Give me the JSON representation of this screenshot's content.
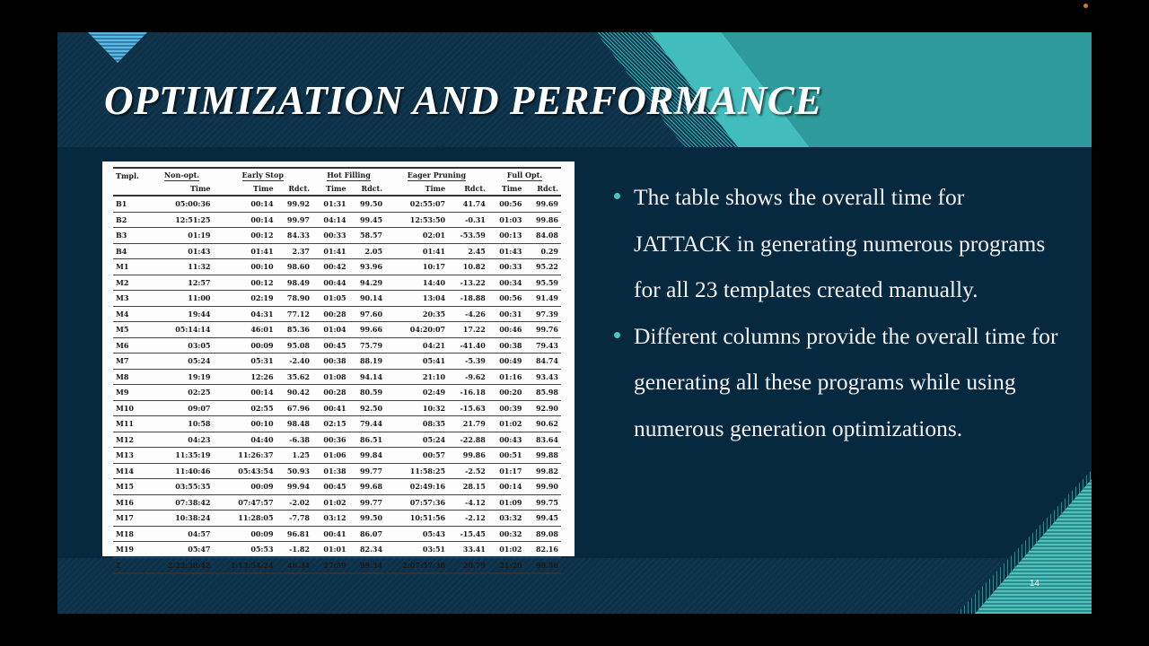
{
  "slide": {
    "title": "OPTIMIZATION AND PERFORMANCE",
    "page_number": "14",
    "colors": {
      "background": "#0b2d44",
      "panel": "#06293f",
      "accent_teal": "#2e9a9c",
      "accent_light_teal": "#42bcbc",
      "bullet": "#4ec3c0"
    }
  },
  "table": {
    "group_headers": [
      "Tmpl.",
      "Non-opt.",
      "Early Stop",
      "Hot Filling",
      "Eager Pruning",
      "Full Opt."
    ],
    "sub_headers": [
      "",
      "Time",
      "Time",
      "Rdct.",
      "Time",
      "Rdct.",
      "Time",
      "Rdct.",
      "Time",
      "Rdct."
    ],
    "rows": [
      [
        "B1",
        "05:00:36",
        "00:14",
        "99.92",
        "01:31",
        "99.50",
        "02:55:07",
        "41.74",
        "00:56",
        "99.69"
      ],
      [
        "B2",
        "12:51:25",
        "00:14",
        "99.97",
        "04:14",
        "99.45",
        "12:53:50",
        "-0.31",
        "01:03",
        "99.86"
      ],
      [
        "B3",
        "01:19",
        "00:12",
        "84.33",
        "00:33",
        "58.57",
        "02:01",
        "-53.59",
        "00:13",
        "84.08"
      ],
      [
        "B4",
        "01:43",
        "01:41",
        "2.37",
        "01:41",
        "2.05",
        "01:41",
        "2.45",
        "01:43",
        "0.29"
      ],
      [
        "M1",
        "11:32",
        "00:10",
        "98.60",
        "00:42",
        "93.96",
        "10:17",
        "10.82",
        "00:33",
        "95.22"
      ],
      [
        "M2",
        "12:57",
        "00:12",
        "98.49",
        "00:44",
        "94.29",
        "14:40",
        "-13.22",
        "00:34",
        "95.59"
      ],
      [
        "M3",
        "11:00",
        "02:19",
        "78.90",
        "01:05",
        "90.14",
        "13:04",
        "-18.88",
        "00:56",
        "91.49"
      ],
      [
        "M4",
        "19:44",
        "04:31",
        "77.12",
        "00:28",
        "97.60",
        "20:35",
        "-4.26",
        "00:31",
        "97.39"
      ],
      [
        "M5",
        "05:14:14",
        "46:01",
        "85.36",
        "01:04",
        "99.66",
        "04:20:07",
        "17.22",
        "00:46",
        "99.76"
      ],
      [
        "M6",
        "03:05",
        "00:09",
        "95.08",
        "00:45",
        "75.79",
        "04:21",
        "-41.40",
        "00:38",
        "79.43"
      ],
      [
        "M7",
        "05:24",
        "05:31",
        "-2.40",
        "00:38",
        "88.19",
        "05:41",
        "-5.39",
        "00:49",
        "84.74"
      ],
      [
        "M8",
        "19:19",
        "12:26",
        "35.62",
        "01:08",
        "94.14",
        "21:10",
        "-9.62",
        "01:16",
        "93.43"
      ],
      [
        "M9",
        "02:25",
        "00:14",
        "90.42",
        "00:28",
        "80.59",
        "02:49",
        "-16.18",
        "00:20",
        "85.98"
      ],
      [
        "M10",
        "09:07",
        "02:55",
        "67.96",
        "00:41",
        "92.50",
        "10:32",
        "-15.63",
        "00:39",
        "92.90"
      ],
      [
        "M11",
        "10:58",
        "00:10",
        "98.48",
        "02:15",
        "79.44",
        "08:35",
        "21.79",
        "01:02",
        "90.62"
      ],
      [
        "M12",
        "04:23",
        "04:40",
        "-6.38",
        "00:36",
        "86.51",
        "05:24",
        "-22.88",
        "00:43",
        "83.64"
      ],
      [
        "M13",
        "11:35:19",
        "11:26:37",
        "1.25",
        "01:06",
        "99.84",
        "00:57",
        "99.86",
        "00:51",
        "99.88"
      ],
      [
        "M14",
        "11:40:46",
        "05:43:54",
        "50.93",
        "01:38",
        "99.77",
        "11:58:25",
        "-2.52",
        "01:17",
        "99.82"
      ],
      [
        "M15",
        "03:55:35",
        "00:09",
        "99.94",
        "00:45",
        "99.68",
        "02:49:16",
        "28.15",
        "00:14",
        "99.90"
      ],
      [
        "M16",
        "07:38:42",
        "07:47:57",
        "-2.02",
        "01:02",
        "99.77",
        "07:57:36",
        "-4.12",
        "01:09",
        "99.75"
      ],
      [
        "M17",
        "10:38:24",
        "11:28:05",
        "-7.78",
        "03:12",
        "99.50",
        "10:51:56",
        "-2.12",
        "03:32",
        "99.45"
      ],
      [
        "M18",
        "04:57",
        "00:09",
        "96.81",
        "00:41",
        "86.07",
        "05:43",
        "-15.45",
        "00:32",
        "89.08"
      ],
      [
        "M19",
        "05:47",
        "05:53",
        "-1.82",
        "01:01",
        "82.34",
        "03:51",
        "33.41",
        "01:02",
        "82.16"
      ],
      [
        "Σ",
        "2:22:38:42",
        "1:13:54:24",
        "46.34",
        "27:59",
        "99.34",
        "2:07:57:38",
        "20.79",
        "21:20",
        "99.50"
      ]
    ]
  },
  "bullets": [
    "The table shows the overall time for JATTACK in generating numerous programs for all 23 templates created manually.",
    "Different columns provide the overall time for generating all these programs while using numerous generation optimizations."
  ]
}
